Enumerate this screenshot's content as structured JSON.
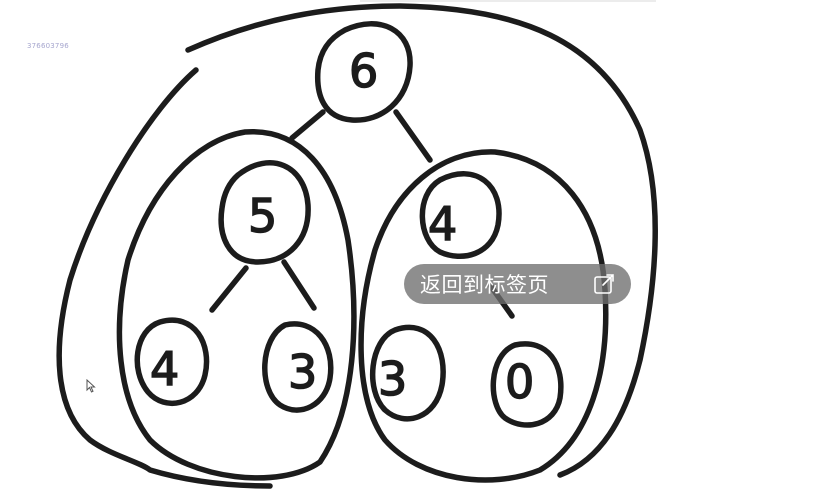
{
  "watermark": "376603796",
  "overlay": {
    "back_label": "返回到标签页",
    "icon": "external-open-icon"
  },
  "tree": {
    "root": "6",
    "left_child": "5",
    "right_child": "4",
    "left_left": "4",
    "left_right": "3",
    "right_left": "3",
    "right_right": "0"
  },
  "colors": {
    "ink": "#1c1c1c",
    "pill_bg": "rgba(110,110,110,0.78)",
    "watermark": "#a6a6ce"
  }
}
